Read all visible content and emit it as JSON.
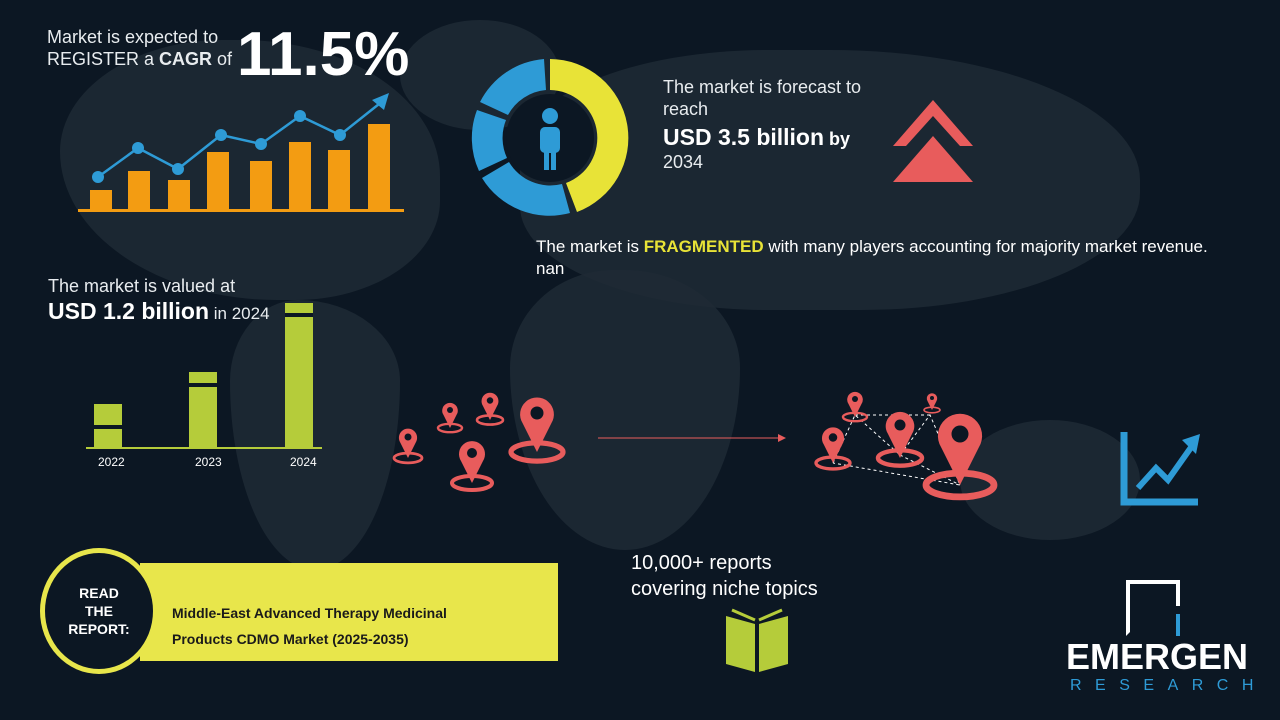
{
  "cagr": {
    "line1": "Market is expected to",
    "line2_prefix": "REGISTER a ",
    "line2_bold": "CAGR",
    "line2_suffix": " of",
    "value": "11.5%"
  },
  "forecast": {
    "line1": "The market is forecast to",
    "line2": "reach",
    "value": "USD 3.5 billion",
    "by": " by",
    "year": "2034"
  },
  "fragmented": {
    "prefix": "The market is ",
    "highlight": "FRAGMENTED",
    "suffix": " with many players accounting for majority market revenue. nan"
  },
  "valued": {
    "line1": "The market is valued at",
    "value": "USD 1.2 billion",
    "suffix": " in 2024"
  },
  "bar_years": [
    "2022",
    "2023",
    "2024"
  ],
  "reports": {
    "line1": "10,000+ reports",
    "line2": "covering niche topics"
  },
  "read_report": {
    "badge": [
      "READ",
      "THE",
      "REPORT:"
    ],
    "title_line1": "Middle-East Advanced Therapy Medicinal",
    "title_line2": "Products CDMO Market (2025-2035)"
  },
  "logo": {
    "name": "EMERGEN",
    "sub": "RESEARCH"
  },
  "colors": {
    "background": "#0c1723",
    "orange": "#f39c12",
    "blue": "#2e9bd6",
    "yellow": "#e8e337",
    "green": "#b5cc3a",
    "red": "#e85c5c"
  }
}
